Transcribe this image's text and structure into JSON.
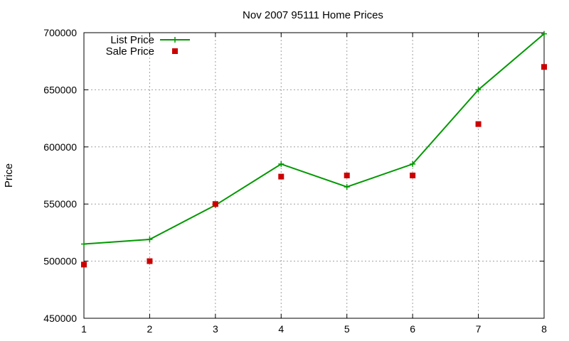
{
  "chart_data": {
    "type": "line",
    "title": "Nov 2007 95111 Home Prices",
    "xlabel": "",
    "ylabel": "Price",
    "x": [
      1,
      2,
      3,
      4,
      5,
      6,
      7,
      8
    ],
    "xlim": [
      1,
      8
    ],
    "ylim": [
      450000,
      700000
    ],
    "xticks": [
      "1",
      "2",
      "3",
      "4",
      "5",
      "6",
      "7",
      "8"
    ],
    "yticks": [
      "450000",
      "500000",
      "550000",
      "600000",
      "650000",
      "700000"
    ],
    "ytick_values": [
      450000,
      500000,
      550000,
      600000,
      650000,
      700000
    ],
    "grid": true,
    "legend_position": "top-left",
    "series": [
      {
        "name": "List Price",
        "style": "linespoints",
        "marker": "plus",
        "color": "#009900",
        "values": [
          515000,
          519000,
          549000,
          585000,
          565000,
          585000,
          650000,
          699000
        ]
      },
      {
        "name": "Sale Price",
        "style": "points",
        "marker": "square",
        "color": "#cc0000",
        "values": [
          497000,
          500000,
          550000,
          574000,
          575000,
          575000,
          620000,
          670000
        ]
      }
    ]
  }
}
